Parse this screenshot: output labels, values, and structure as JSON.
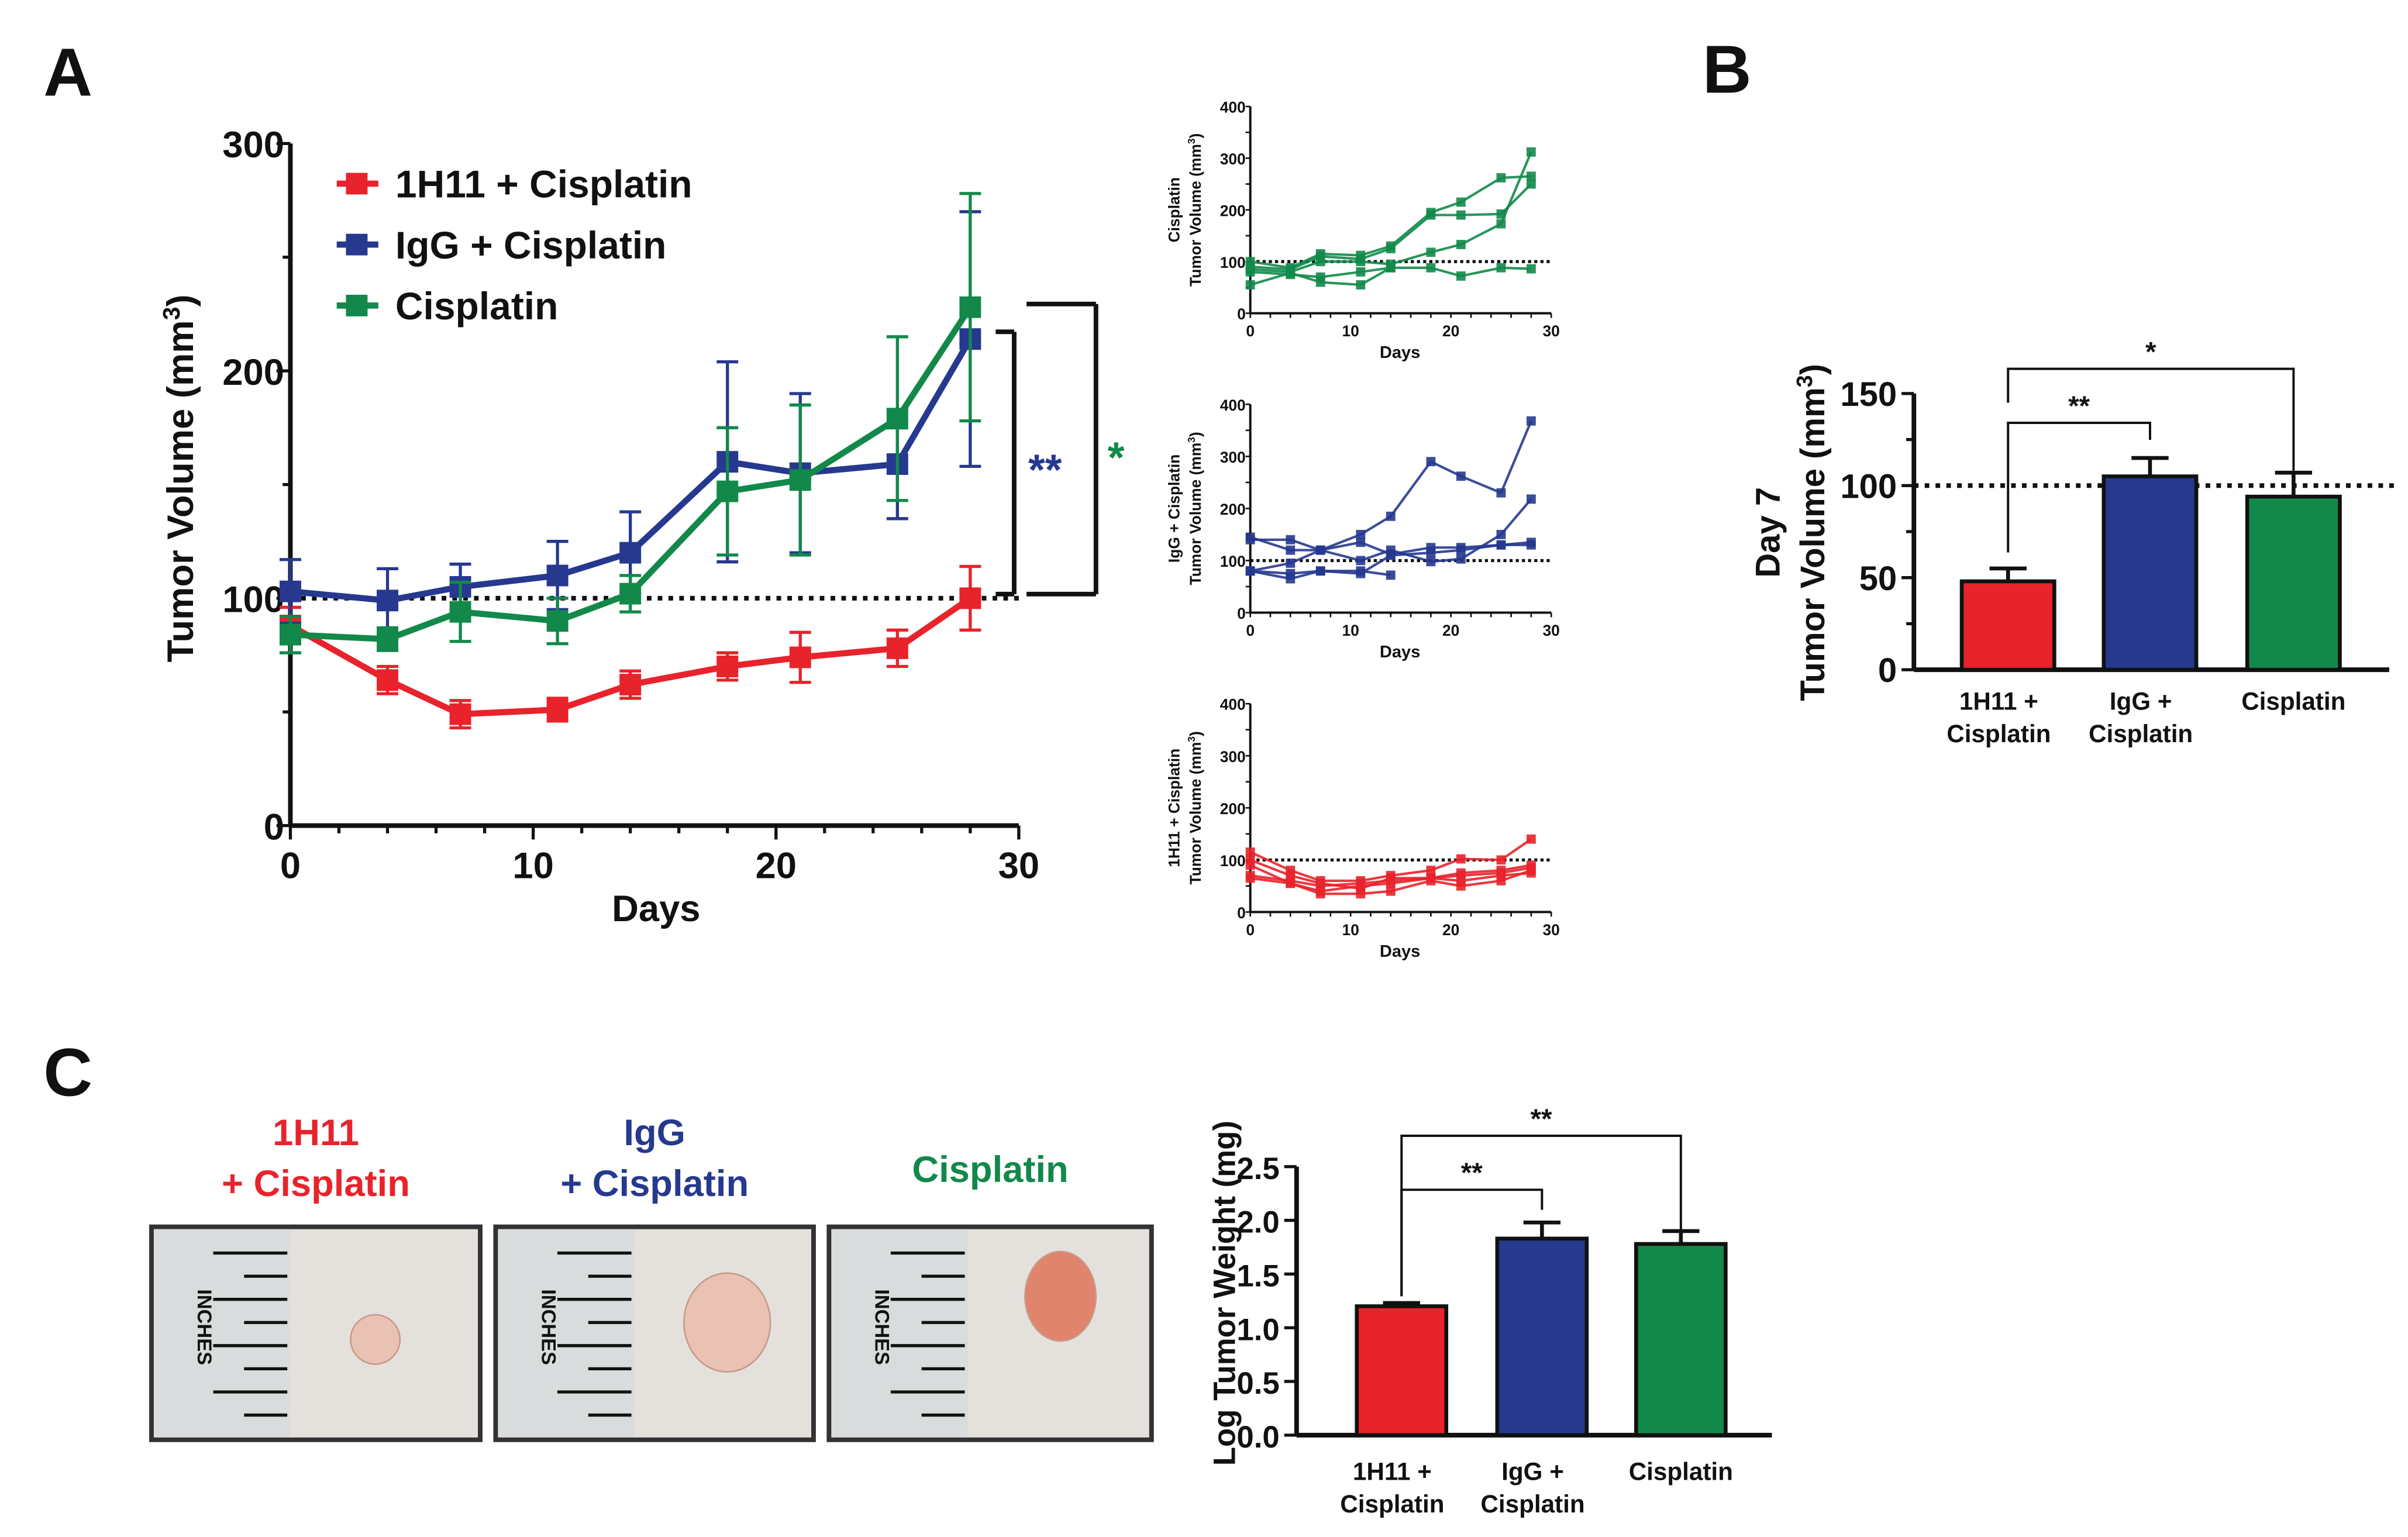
{
  "panels": {
    "a": "A",
    "b": "B",
    "c": "C"
  },
  "colors": {
    "red": "#e8232b",
    "blue": "#26398f",
    "green": "#12894a"
  },
  "chart_data": [
    {
      "type": "line",
      "id": "A-main",
      "xlabel": "Days",
      "ylabel": "Tumor Volume (mm³)",
      "xlim": [
        0,
        30
      ],
      "ylim": [
        0,
        300
      ],
      "xticks": [
        0,
        10,
        20,
        30
      ],
      "yticks": [
        0,
        100,
        200,
        300
      ],
      "reference_line": 100,
      "legend_position": "top-left",
      "x": [
        0,
        4,
        7,
        11,
        14,
        18,
        21,
        25,
        28
      ],
      "series": [
        {
          "name": "1H11 + Cisplatin",
          "color": "red",
          "values": [
            88,
            64,
            49,
            51,
            62,
            70,
            74,
            78,
            100
          ],
          "errors": [
            8,
            6,
            6,
            5,
            6,
            6,
            11,
            8,
            14
          ]
        },
        {
          "name": "IgG + Cisplatin",
          "color": "blue",
          "values": [
            103,
            99,
            105,
            110,
            120,
            160,
            155,
            159,
            214
          ],
          "errors": [
            14,
            14,
            10,
            15,
            18,
            44,
            35,
            24,
            56
          ]
        },
        {
          "name": "Cisplatin",
          "color": "green",
          "values": [
            84,
            82,
            94,
            90,
            102,
            147,
            152,
            179,
            228
          ],
          "errors": [
            8,
            5,
            13,
            10,
            8,
            28,
            33,
            36,
            50
          ]
        }
      ],
      "annotations": [
        {
          "text": "**",
          "color": "blue"
        },
        {
          "text": "*",
          "color": "green"
        }
      ]
    },
    {
      "type": "line",
      "id": "A-cis",
      "ylabel_lines": [
        "Cisplatin",
        "Tumor Volume (mm³)"
      ],
      "xlabel": "Days",
      "xlim": [
        0,
        30
      ],
      "ylim": [
        0,
        400
      ],
      "xticks": [
        0,
        10,
        20,
        30
      ],
      "yticks": [
        0,
        100,
        200,
        300,
        400
      ],
      "color": "green",
      "x": [
        0,
        4,
        7,
        11,
        14,
        18,
        21,
        25,
        28
      ],
      "series": [
        [
          100,
          88,
          115,
          112,
          130,
          195,
          215,
          262,
          265
        ],
        [
          90,
          85,
          110,
          105,
          125,
          190,
          190,
          192,
          250
        ],
        [
          85,
          80,
          100,
          100,
          95,
          118,
          133,
          173,
          312
        ],
        [
          80,
          75,
          70,
          80,
          88,
          88,
          72,
          88,
          86
        ],
        [
          55,
          78,
          60,
          55,
          88,
          null,
          null,
          null,
          null
        ]
      ]
    },
    {
      "type": "line",
      "id": "A-igg",
      "ylabel_lines": [
        "IgG + Cisplatin",
        "Tumor Volume (mm³)"
      ],
      "xlabel": "Days",
      "xlim": [
        0,
        30
      ],
      "ylim": [
        0,
        400
      ],
      "xticks": [
        0,
        10,
        20,
        30
      ],
      "yticks": [
        0,
        100,
        200,
        300,
        400
      ],
      "color": "blue",
      "x": [
        0,
        4,
        7,
        11,
        14,
        18,
        21,
        25,
        28
      ],
      "series": [
        [
          80,
          95,
          120,
          150,
          185,
          290,
          262,
          230,
          368
        ],
        [
          140,
          140,
          120,
          100,
          120,
          98,
          103,
          150,
          218
        ],
        [
          145,
          120,
          120,
          135,
          112,
          125,
          125,
          130,
          135
        ],
        [
          80,
          65,
          80,
          80,
          72,
          null,
          null,
          null,
          null
        ],
        [
          80,
          75,
          80,
          75,
          110,
          115,
          120,
          130,
          130
        ]
      ]
    },
    {
      "type": "line",
      "id": "A-1h11",
      "ylabel_lines": [
        "1H11 + Cisplatin",
        "Tumor Volume (mm³)"
      ],
      "xlabel": "Days",
      "xlim": [
        0,
        30
      ],
      "ylim": [
        0,
        400
      ],
      "xticks": [
        0,
        10,
        20,
        30
      ],
      "yticks": [
        0,
        100,
        200,
        300,
        400
      ],
      "color": "red",
      "x": [
        0,
        4,
        7,
        11,
        14,
        18,
        21,
        25,
        28
      ],
      "series": [
        [
          115,
          80,
          60,
          60,
          70,
          80,
          102,
          100,
          140
        ],
        [
          100,
          70,
          55,
          45,
          65,
          65,
          75,
          80,
          90
        ],
        [
          90,
          55,
          40,
          50,
          55,
          65,
          70,
          75,
          85
        ],
        [
          65,
          55,
          35,
          35,
          40,
          60,
          50,
          60,
          80
        ],
        [
          70,
          60,
          50,
          55,
          60,
          65,
          60,
          70,
          75
        ]
      ]
    },
    {
      "type": "bar",
      "id": "B",
      "ylabel_lines": [
        "Day 7",
        "Tumor Volume (mm³)"
      ],
      "ylim": [
        0,
        150
      ],
      "yticks": [
        0,
        50,
        100,
        150
      ],
      "reference_line": 100,
      "categories": [
        [
          "1H11 +",
          "Cisplatin"
        ],
        [
          "IgG +",
          "Cisplatin"
        ],
        [
          "Cisplatin"
        ]
      ],
      "colors": [
        "red",
        "blue",
        "green"
      ],
      "values": [
        48,
        105,
        94
      ],
      "errors": [
        7,
        10,
        13
      ],
      "significance": [
        {
          "from": 0,
          "to": 1,
          "label": "**"
        },
        {
          "from": 0,
          "to": 2,
          "label": "*"
        }
      ]
    },
    {
      "type": "bar",
      "id": "C",
      "ylabel": "Log Tumor Weight (mg)",
      "ylim": [
        0,
        2.5
      ],
      "yticks": [
        "0.0",
        "0.5",
        "1.0",
        "1.5",
        "2.0",
        "2.5"
      ],
      "categories": [
        [
          "1H11 +",
          "Cisplatin"
        ],
        [
          "IgG +",
          "Cisplatin"
        ],
        [
          "Cisplatin"
        ]
      ],
      "colors": [
        "red",
        "blue",
        "green"
      ],
      "values": [
        1.2,
        1.83,
        1.78
      ],
      "errors": [
        0.03,
        0.15,
        0.12
      ],
      "significance": [
        {
          "from": 0,
          "to": 1,
          "label": "**"
        },
        {
          "from": 0,
          "to": 2,
          "label": "**"
        }
      ]
    }
  ],
  "photos": [
    {
      "title": [
        "1H11",
        "+ Cisplatin"
      ],
      "color": "red",
      "ruler": "INCHES"
    },
    {
      "title": [
        "IgG",
        "+ Cisplatin"
      ],
      "color": "blue",
      "ruler": "INCHES"
    },
    {
      "title": [
        "Cisplatin"
      ],
      "color": "green",
      "ruler": "INCHES"
    }
  ]
}
